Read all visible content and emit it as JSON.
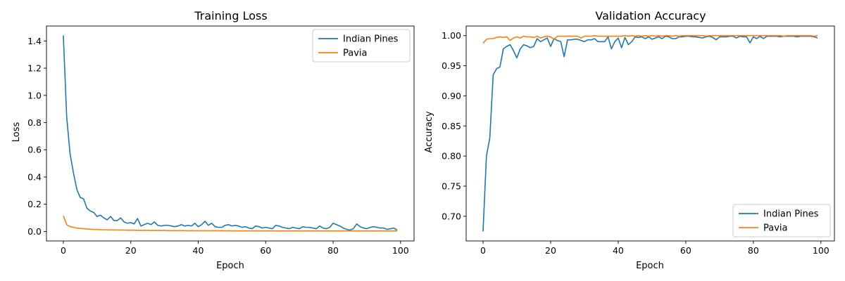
{
  "chart_data": [
    {
      "type": "line",
      "title": "Training Loss",
      "xlabel": "Epoch",
      "ylabel": "Loss",
      "xlim": [
        -5,
        104
      ],
      "ylim": [
        -0.07,
        1.51
      ],
      "xticks": [
        0,
        20,
        40,
        60,
        80,
        100
      ],
      "yticks": [
        0.0,
        0.2,
        0.4,
        0.6,
        0.8,
        1.0,
        1.2,
        1.4
      ],
      "ytick_labels": [
        "0.0",
        "0.2",
        "0.4",
        "0.6",
        "0.8",
        "1.0",
        "1.2",
        "1.4"
      ],
      "grid": false,
      "legend": "upper right",
      "series": [
        {
          "name": "Indian Pines",
          "color": "#1f77b4",
          "x_start": 0,
          "values": [
            1.44,
            0.84,
            0.57,
            0.43,
            0.31,
            0.25,
            0.24,
            0.17,
            0.15,
            0.14,
            0.11,
            0.12,
            0.1,
            0.085,
            0.11,
            0.08,
            0.08,
            0.1,
            0.07,
            0.06,
            0.065,
            0.055,
            0.095,
            0.04,
            0.05,
            0.06,
            0.05,
            0.07,
            0.045,
            0.04,
            0.045,
            0.045,
            0.04,
            0.035,
            0.04,
            0.05,
            0.04,
            0.045,
            0.04,
            0.06,
            0.035,
            0.05,
            0.075,
            0.045,
            0.06,
            0.035,
            0.03,
            0.03,
            0.045,
            0.05,
            0.04,
            0.045,
            0.04,
            0.03,
            0.035,
            0.025,
            0.02,
            0.04,
            0.035,
            0.025,
            0.03,
            0.025,
            0.02,
            0.045,
            0.04,
            0.03,
            0.025,
            0.02,
            0.03,
            0.025,
            0.02,
            0.035,
            0.03,
            0.03,
            0.025,
            0.02,
            0.04,
            0.025,
            0.02,
            0.03,
            0.06,
            0.05,
            0.04,
            0.025,
            0.015,
            0.01,
            0.02,
            0.055,
            0.035,
            0.025,
            0.02,
            0.03,
            0.035,
            0.03,
            0.025,
            0.025,
            0.015,
            0.02,
            0.025,
            0.01
          ]
        },
        {
          "name": "Pavia",
          "color": "#ff7f0e",
          "x_start": 0,
          "values": [
            0.115,
            0.05,
            0.035,
            0.03,
            0.025,
            0.022,
            0.02,
            0.018,
            0.016,
            0.015,
            0.014,
            0.013,
            0.012,
            0.012,
            0.011,
            0.011,
            0.01,
            0.01,
            0.01,
            0.009,
            0.009,
            0.009,
            0.008,
            0.008,
            0.008,
            0.008,
            0.007,
            0.007,
            0.007,
            0.007,
            0.007,
            0.006,
            0.006,
            0.006,
            0.006,
            0.006,
            0.006,
            0.005,
            0.006,
            0.005,
            0.005,
            0.005,
            0.005,
            0.005,
            0.005,
            0.005,
            0.005,
            0.005,
            0.004,
            0.005,
            0.004,
            0.004,
            0.004,
            0.004,
            0.004,
            0.004,
            0.004,
            0.004,
            0.004,
            0.004,
            0.004,
            0.004,
            0.004,
            0.003,
            0.004,
            0.003,
            0.003,
            0.003,
            0.003,
            0.003,
            0.003,
            0.003,
            0.003,
            0.003,
            0.003,
            0.003,
            0.003,
            0.003,
            0.003,
            0.003,
            0.003,
            0.003,
            0.003,
            0.003,
            0.003,
            0.003,
            0.003,
            0.003,
            0.003,
            0.003,
            0.003,
            0.003,
            0.003,
            0.003,
            0.003,
            0.003,
            0.003,
            0.003,
            0.003,
            0.003
          ]
        }
      ]
    },
    {
      "type": "line",
      "title": "Validation Accuracy",
      "xlabel": "Epoch",
      "ylabel": "Accuracy",
      "xlim": [
        -5,
        104
      ],
      "ylim": [
        0.659,
        1.016
      ],
      "xticks": [
        0,
        20,
        40,
        60,
        80,
        100
      ],
      "yticks": [
        0.7,
        0.75,
        0.8,
        0.85,
        0.9,
        0.95,
        1.0
      ],
      "ytick_labels": [
        "0.70",
        "0.75",
        "0.80",
        "0.85",
        "0.90",
        "0.95",
        "1.00"
      ],
      "grid": false,
      "legend": "lower right",
      "series": [
        {
          "name": "Indian Pines",
          "color": "#1f77b4",
          "x_start": 0,
          "values": [
            0.675,
            0.8,
            0.83,
            0.935,
            0.945,
            0.948,
            0.978,
            0.982,
            0.985,
            0.975,
            0.963,
            0.978,
            0.985,
            0.983,
            0.98,
            0.982,
            0.995,
            0.99,
            0.993,
            0.996,
            0.982,
            0.995,
            0.992,
            0.99,
            0.965,
            0.993,
            0.993,
            0.994,
            0.994,
            0.992,
            0.99,
            0.993,
            0.993,
            0.995,
            0.99,
            0.99,
            0.99,
            0.998,
            0.978,
            0.99,
            0.996,
            0.98,
            0.997,
            0.985,
            0.99,
            0.998,
            0.997,
            0.998,
            0.995,
            0.998,
            0.994,
            0.996,
            0.998,
            0.995,
            0.999,
            0.998,
            0.995,
            0.995,
            0.998,
            0.998,
            0.999,
            0.999,
            0.998,
            0.998,
            0.997,
            0.996,
            0.998,
            0.999,
            0.997,
            0.993,
            0.998,
            0.998,
            0.998,
            0.999,
            0.999,
            0.996,
            0.999,
            0.998,
            0.998,
            0.988,
            0.998,
            0.995,
            0.999,
            0.995,
            0.999,
            0.999,
            0.999,
            0.999,
            0.998,
            0.999,
            0.999,
            0.999,
            0.999,
            0.998,
            0.999,
            0.999,
            0.999,
            0.999,
            0.998,
            0.996
          ]
        },
        {
          "name": "Pavia",
          "color": "#ff7f0e",
          "x_start": 0,
          "values": [
            0.987,
            0.994,
            0.995,
            0.995,
            0.997,
            0.998,
            0.997,
            0.998,
            0.992,
            0.996,
            0.998,
            0.996,
            0.999,
            0.998,
            0.998,
            0.997,
            0.999,
            0.996,
            0.998,
            0.999,
            0.998,
            0.994,
            0.999,
            0.999,
            0.999,
            0.999,
            0.999,
            0.999,
            0.999,
            0.996,
            0.999,
            0.999,
            0.999,
            1.0,
            0.999,
            0.999,
            0.999,
            0.999,
            0.999,
            0.999,
            0.999,
            0.999,
            1.0,
            0.999,
            1.0,
            0.999,
            1.0,
            0.999,
            1.0,
            0.999,
            1.0,
            0.999,
            1.0,
            0.999,
            1.0,
            1.0,
            0.999,
            1.0,
            0.999,
            1.0,
            1.0,
            1.0,
            1.0,
            1.0,
            1.0,
            1.0,
            0.999,
            1.0,
            1.0,
            1.0,
            1.0,
            1.0,
            1.0,
            1.0,
            1.0,
            1.0,
            1.0,
            1.0,
            1.0,
            1.0,
            1.0,
            1.0,
            1.0,
            1.0,
            1.0,
            1.0,
            1.0,
            1.0,
            1.0,
            0.999,
            1.0,
            1.0,
            1.0,
            1.0,
            1.0,
            1.0,
            1.0,
            1.0,
            0.999,
            1.0
          ]
        }
      ]
    }
  ]
}
